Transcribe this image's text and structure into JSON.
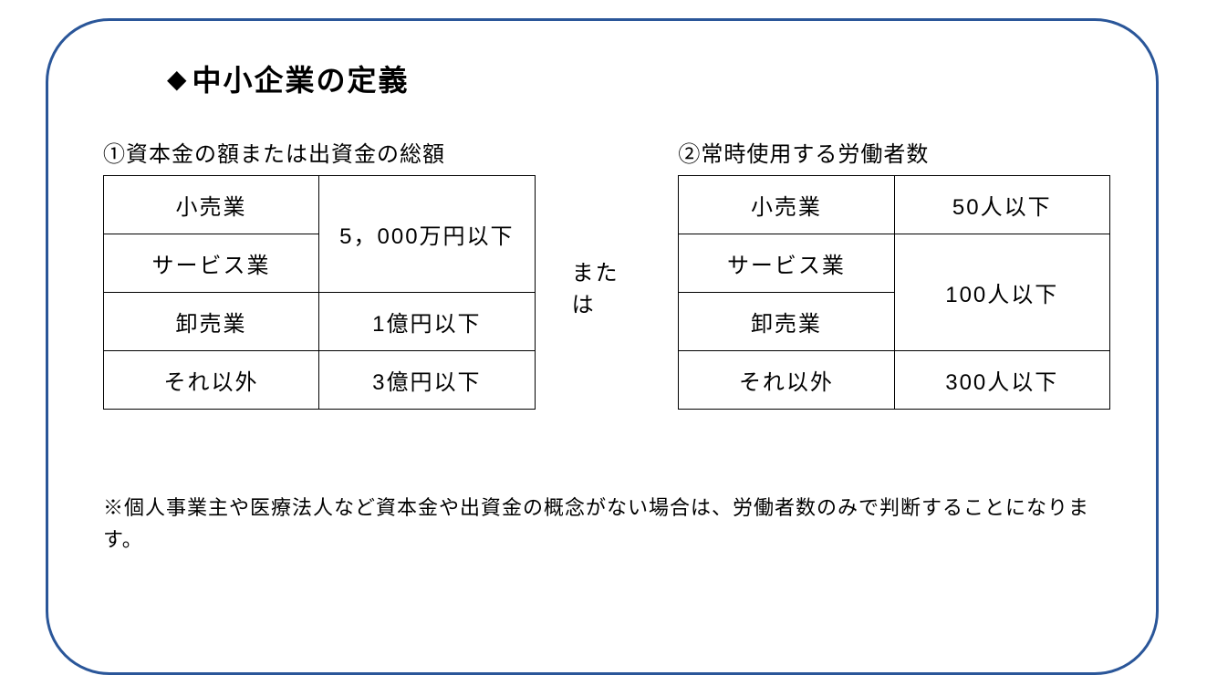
{
  "title": {
    "diamond": "◆",
    "text": "中小企業の定義"
  },
  "block1": {
    "header": "①資本金の額または出資金の総額",
    "rows": [
      {
        "label": "小売業"
      },
      {
        "label": "サービス業"
      },
      {
        "label": "卸売業"
      },
      {
        "label": "それ以外"
      }
    ],
    "values": {
      "merged_0_1": "5，000万円以下",
      "row2": "1億円以下",
      "row3": "3億円以下"
    }
  },
  "connector": "または",
  "block2": {
    "header": "②常時使用する労働者数",
    "rows": [
      {
        "label": "小売業"
      },
      {
        "label": "サービス業"
      },
      {
        "label": "卸売業"
      },
      {
        "label": "それ以外"
      }
    ],
    "values": {
      "row0": "50人以下",
      "merged_1_2": "100人以下",
      "row3": "300人以下"
    }
  },
  "note": "※個人事業主や医療法人など資本金や出資金の概念がない場合は、労働者数のみで判断することになります。",
  "styling": {
    "frame_border_color": "#2a5699",
    "frame_border_width": 3,
    "frame_border_radius": 70,
    "background_color": "#ffffff",
    "text_color": "#000000",
    "title_fontsize": 32,
    "header_fontsize": 24,
    "cell_fontsize": 24,
    "note_fontsize": 22,
    "table_border_color": "#000000",
    "table_border_width": 1.5,
    "col_label_width": 240,
    "col_value_width": 240
  }
}
